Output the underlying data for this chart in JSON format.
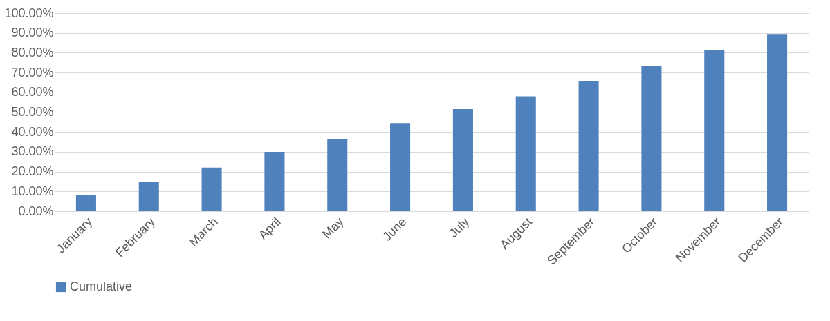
{
  "chart_data": {
    "type": "bar",
    "categories": [
      "January",
      "February",
      "March",
      "April",
      "May",
      "June",
      "July",
      "August",
      "September",
      "October",
      "November",
      "December"
    ],
    "series": [
      {
        "name": "Cumulative",
        "color": "#4f81bd",
        "values": [
          8.0,
          14.8,
          22.0,
          30.0,
          36.2,
          44.5,
          51.6,
          58.0,
          65.5,
          73.2,
          81.2,
          89.5
        ]
      }
    ],
    "ylim": [
      0,
      100
    ],
    "yticks": [
      {
        "value": 0,
        "label": "0.00%"
      },
      {
        "value": 10,
        "label": "10.00%"
      },
      {
        "value": 20,
        "label": "20.00%"
      },
      {
        "value": 30,
        "label": "30.00%"
      },
      {
        "value": 40,
        "label": "40.00%"
      },
      {
        "value": 50,
        "label": "50.00%"
      },
      {
        "value": 60,
        "label": "60.00%"
      },
      {
        "value": 70,
        "label": "70.00%"
      },
      {
        "value": 80,
        "label": "80.00%"
      },
      {
        "value": 90,
        "label": "90.00%"
      },
      {
        "value": 100,
        "label": "100.00%"
      }
    ],
    "grid": "y",
    "legend": "bottom"
  }
}
